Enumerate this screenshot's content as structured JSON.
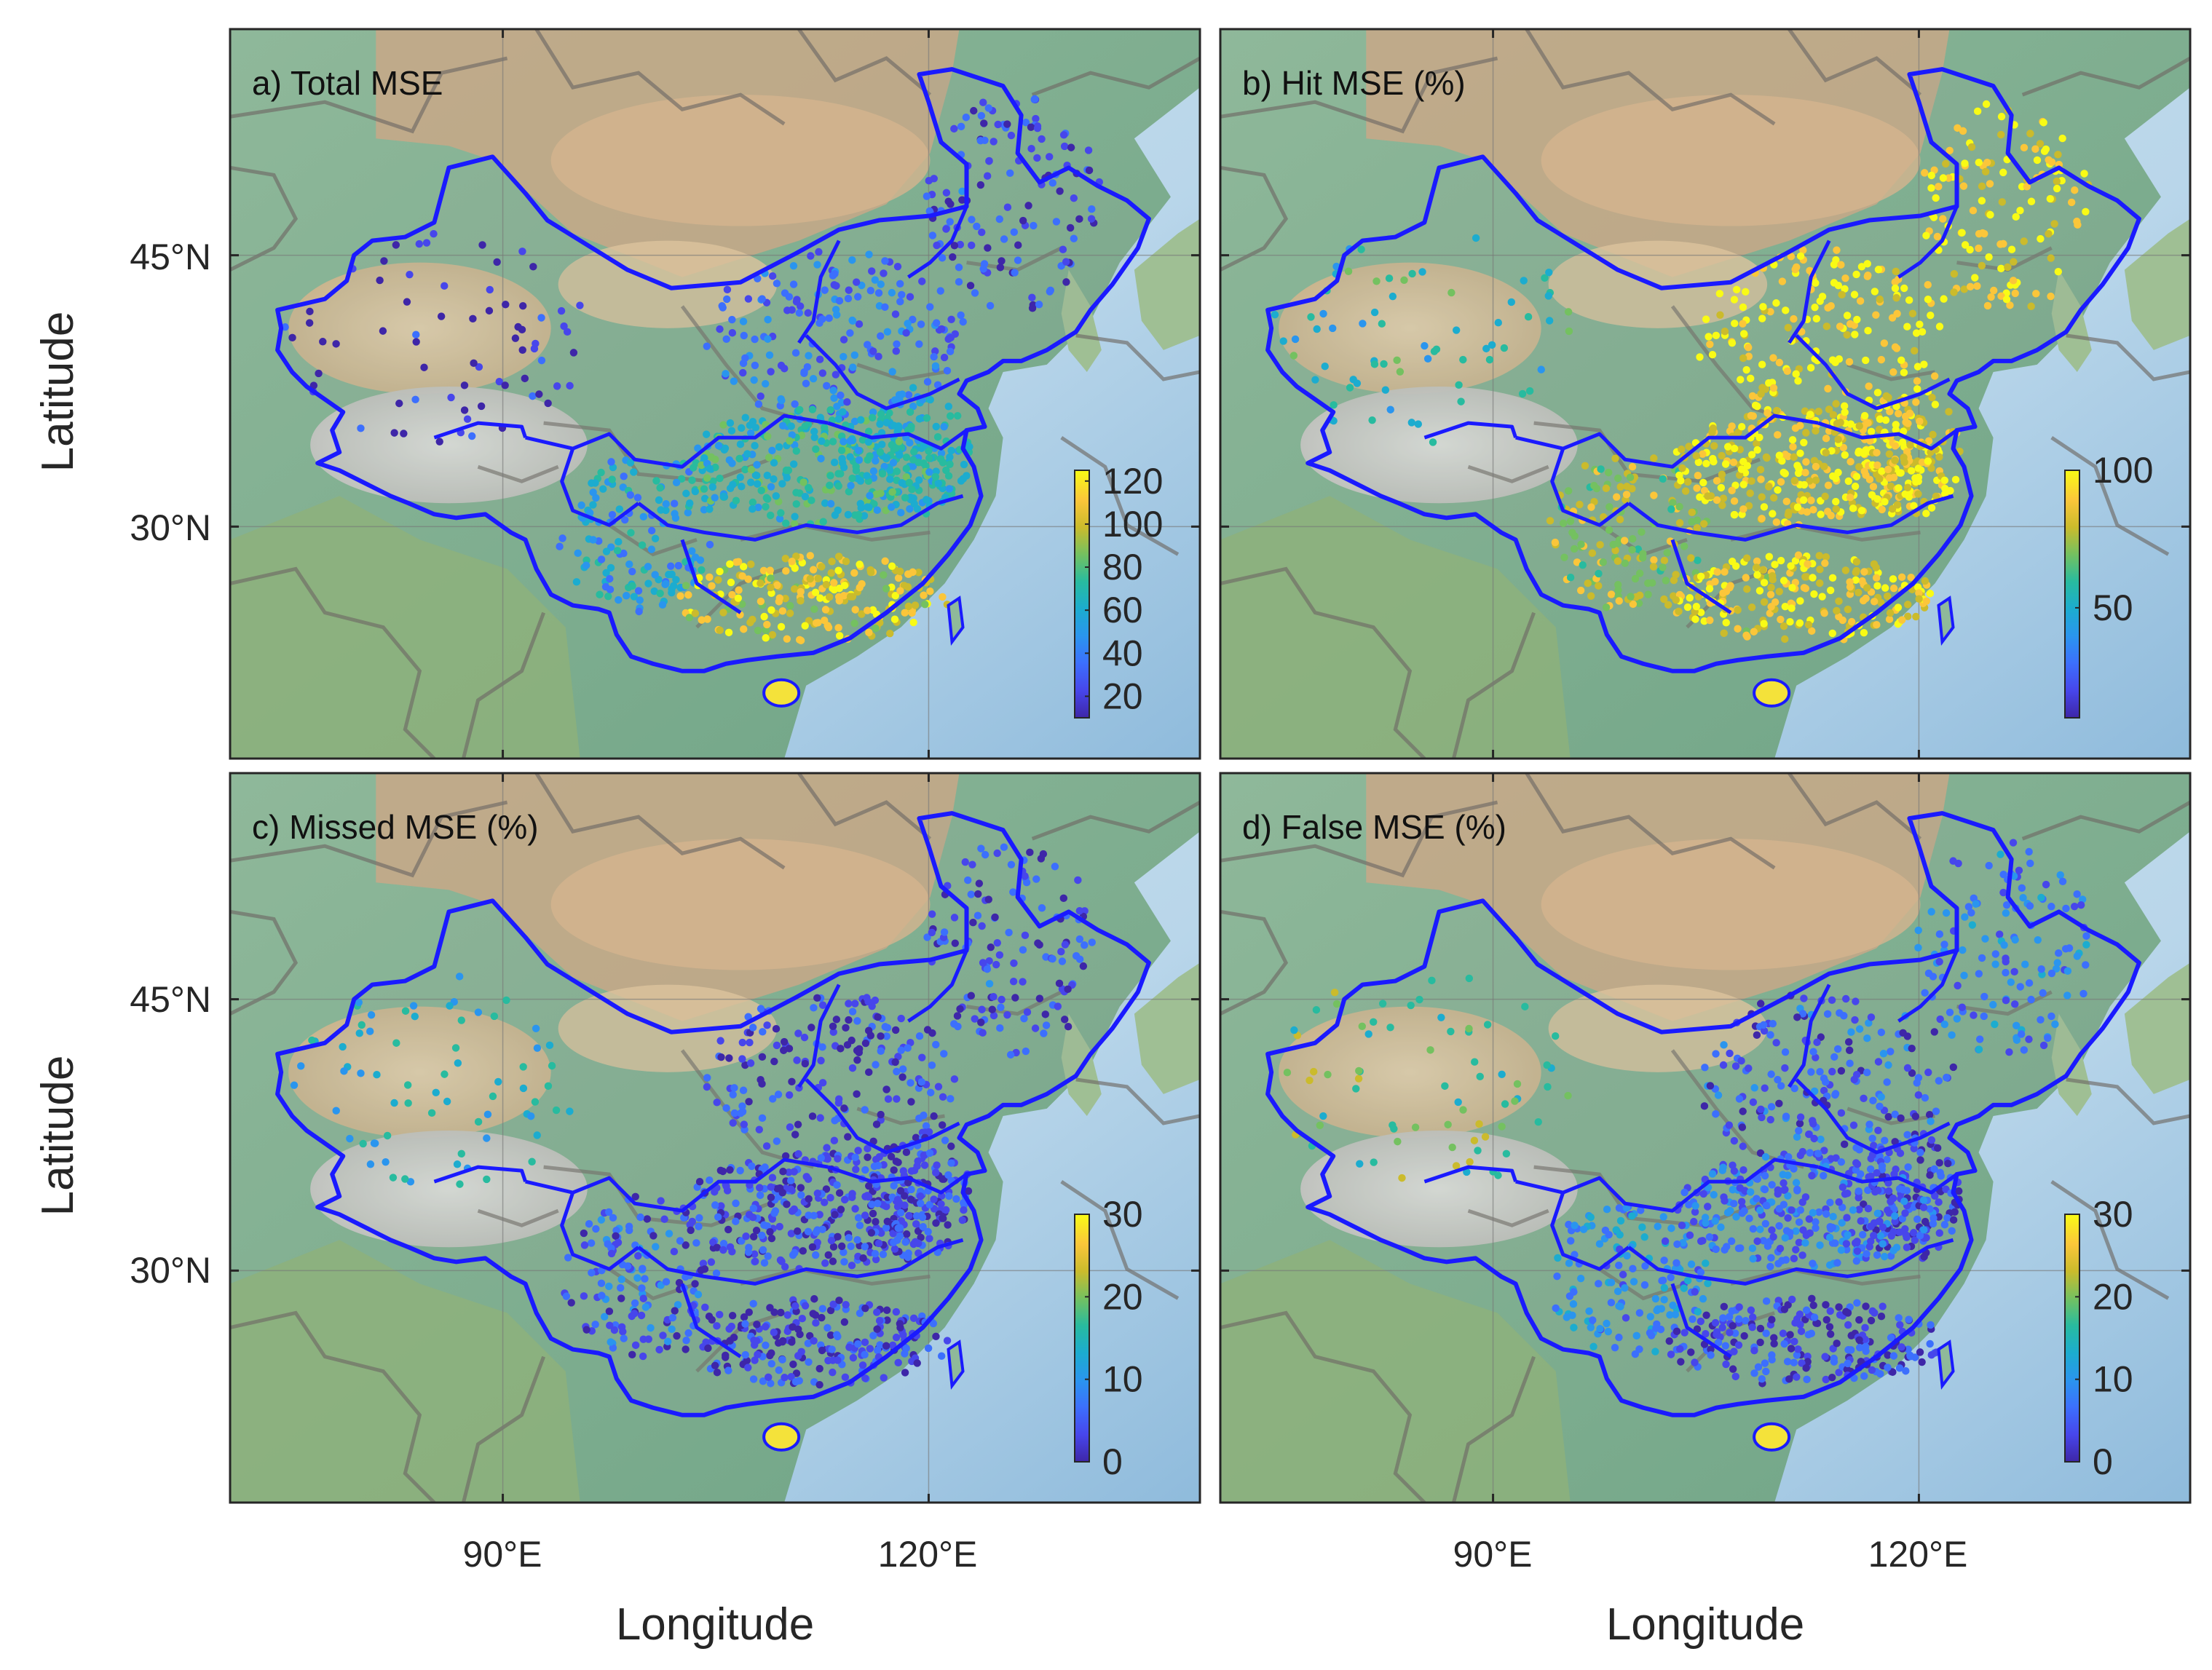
{
  "figure": {
    "y_axis_label": "Latitude",
    "x_axis_label": "Longitude",
    "lat_ticks": [
      "45°N",
      "30°N"
    ],
    "lon_ticks": [
      "90°E",
      "120°E"
    ]
  },
  "panels": [
    {
      "id": "a",
      "title": "a) Total MSE",
      "colorbar": {
        "ticks": [
          "120",
          "100",
          "80",
          "60",
          "40",
          "20"
        ],
        "values": [
          120,
          100,
          80,
          60,
          40,
          20
        ],
        "min": 10,
        "max": 125
      },
      "regions": {
        "northwest": 0.05,
        "northeast": 0.12,
        "north": 0.22,
        "central": 0.5,
        "southwest": 0.38,
        "east": 0.45,
        "south": 0.85
      }
    },
    {
      "id": "b",
      "title": "b) Hit MSE (%)",
      "colorbar": {
        "ticks": [
          "100",
          "50"
        ],
        "values": [
          100,
          50
        ],
        "min": 10,
        "max": 100
      },
      "regions": {
        "northwest": 0.5,
        "northeast": 0.92,
        "north": 0.94,
        "central": 0.9,
        "southwest": 0.75,
        "east": 0.9,
        "south": 0.88
      }
    },
    {
      "id": "c",
      "title": "c) Missed MSE (%)",
      "colorbar": {
        "ticks": [
          "30",
          "20",
          "10",
          "0"
        ],
        "values": [
          30,
          20,
          10,
          0
        ],
        "min": 0,
        "max": 30
      },
      "regions": {
        "northwest": 0.45,
        "northeast": 0.12,
        "north": 0.1,
        "central": 0.12,
        "southwest": 0.18,
        "east": 0.1,
        "south": 0.1
      }
    },
    {
      "id": "d",
      "title": "d) False MSE (%)",
      "colorbar": {
        "ticks": [
          "30",
          "20",
          "10",
          "0"
        ],
        "values": [
          30,
          20,
          10,
          0
        ],
        "min": 0,
        "max": 30
      },
      "regions": {
        "northwest": 0.62,
        "northeast": 0.25,
        "north": 0.15,
        "central": 0.22,
        "southwest": 0.3,
        "east": 0.1,
        "south": 0.1
      }
    }
  ],
  "colors": {
    "boundary": "#1a1aff",
    "colormap": [
      "#3e26a8",
      "#4746eb",
      "#3c6ffd",
      "#2a95ee",
      "#1caccf",
      "#28bb9f",
      "#74c160",
      "#cbbb2c",
      "#fbc63a",
      "#f9fb15"
    ]
  }
}
